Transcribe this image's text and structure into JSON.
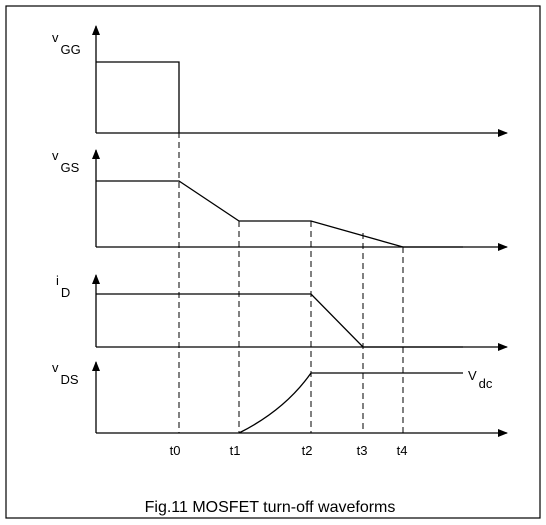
{
  "signals": [
    {
      "symbol": "v",
      "subscript": "GG"
    },
    {
      "symbol": "v",
      "subscript": "GS"
    },
    {
      "symbol": "i",
      "subscript": "D"
    },
    {
      "symbol": "v",
      "subscript": "DS"
    }
  ],
  "level_label": {
    "symbol": "V",
    "subscript": "dc"
  },
  "time_labels": [
    "t0",
    "t1",
    "t2",
    "t3",
    "t4"
  ],
  "caption": "Fig.11 MOSFET turn-off waveforms"
}
